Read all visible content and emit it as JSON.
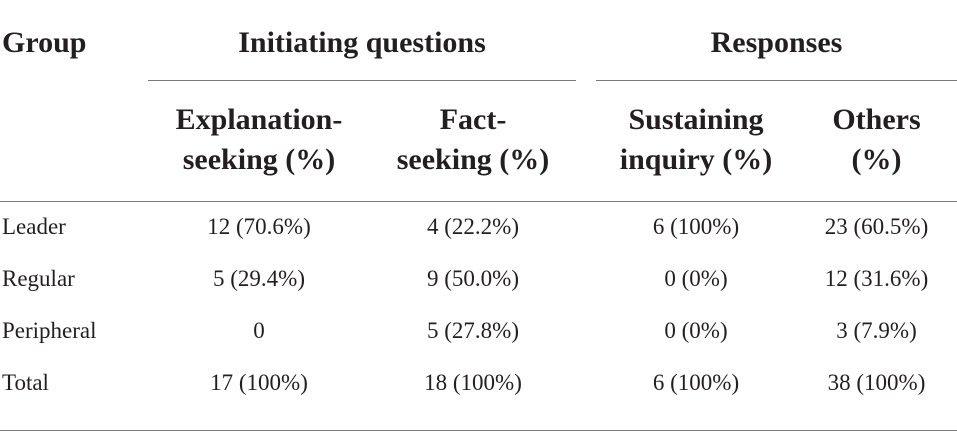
{
  "table": {
    "group_header": "Group",
    "span_headers": {
      "initiating": "Initiating questions",
      "responses": "Responses"
    },
    "columns": [
      {
        "line1": "Explanation-",
        "line2": "seeking (%)"
      },
      {
        "line1": "Fact-",
        "line2": "seeking (%)"
      },
      {
        "line1": "Sustaining",
        "line2": "inquiry (%)"
      },
      {
        "line1": "Others",
        "line2": "(%)"
      }
    ],
    "rows": [
      {
        "group": "Leader",
        "cells": [
          "12 (70.6%)",
          "4 (22.2%)",
          "6 (100%)",
          "23 (60.5%)"
        ]
      },
      {
        "group": "Regular",
        "cells": [
          "5 (29.4%)",
          "9 (50.0%)",
          "0 (0%)",
          "12 (31.6%)"
        ]
      },
      {
        "group": "Peripheral",
        "cells": [
          "0",
          "5 (27.8%)",
          "0 (0%)",
          "3 (7.9%)"
        ]
      },
      {
        "group": "Total",
        "cells": [
          "17 (100%)",
          "18 (100%)",
          "6 (100%)",
          "38 (100%)"
        ]
      }
    ]
  }
}
